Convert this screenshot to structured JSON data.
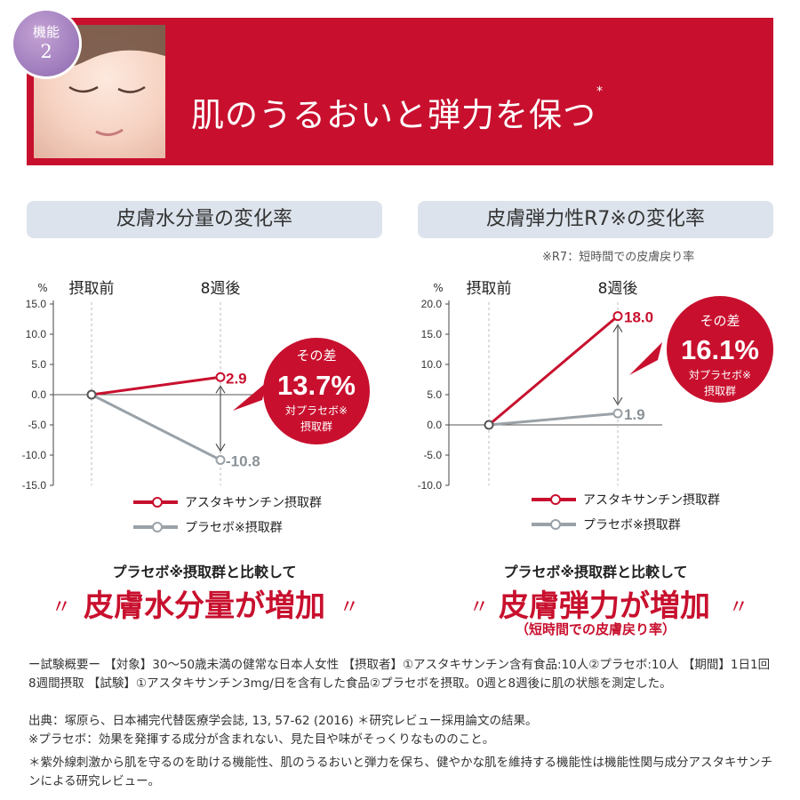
{
  "header": {
    "badge_line1": "機能",
    "badge_line2": "2",
    "title": "肌のうるおいと弾力を保つ",
    "title_mark": "*"
  },
  "left_panel": {
    "title": "皮膚水分量の変化率",
    "diff_label": "その差",
    "diff_value": "13.7%",
    "diff_note1": "対プラセボ※",
    "diff_note2": "摂取群",
    "compare_sub": "プラセボ※摂取群と比較して",
    "compare_big": "皮膚水分量が増加"
  },
  "right_panel": {
    "title": "皮膚弾力性R7※の変化率",
    "note": "※R7：短時間での皮膚戻り率",
    "diff_label": "その差",
    "diff_value": "16.1%",
    "diff_note1": "対プラセボ※",
    "diff_note2": "摂取群",
    "compare_sub": "プラセボ※摂取群と比較して",
    "compare_big": "皮膚弾力が増加",
    "compare_note": "（短時間での皮膚戻り率）"
  },
  "chart_data": [
    {
      "type": "line",
      "title": "皮膚水分量の変化率",
      "unit_label": "%",
      "categories": [
        "摂取前",
        "8週後"
      ],
      "ylim": [
        -15,
        15
      ],
      "yticks": [
        "15.0",
        "10.0",
        "5.0",
        "0.0",
        "-5.0",
        "-10.0",
        "-15.0"
      ],
      "series": [
        {
          "name": "アスタキサンチン摂取群",
          "values": [
            0,
            2.9
          ],
          "end_label": "2.9",
          "color": "#c8102e"
        },
        {
          "name": "プラセボ※摂取群",
          "values": [
            0,
            -10.8
          ],
          "end_label": "-10.8",
          "color": "#9aa2a8"
        }
      ],
      "grid": false,
      "legend_position": "bottom"
    },
    {
      "type": "line",
      "title": "皮膚弾力性R7※の変化率",
      "unit_label": "%",
      "categories": [
        "摂取前",
        "8週後"
      ],
      "ylim": [
        -10,
        20
      ],
      "yticks": [
        "20.0",
        "15.0",
        "10.0",
        "5.0",
        "0.0",
        "-5.0",
        "-10.0"
      ],
      "series": [
        {
          "name": "アスタキサンチン摂取群",
          "values": [
            0,
            18.0
          ],
          "end_label": "18.0",
          "color": "#c8102e"
        },
        {
          "name": "プラセボ※摂取群",
          "values": [
            0,
            1.9
          ],
          "end_label": "1.9",
          "color": "#9aa2a8"
        }
      ],
      "grid": false,
      "legend_position": "bottom"
    }
  ],
  "footnotes": [
    "ー試験概要ー 【対象】30～50歳未満の健常な日本人女性 【摂取者】①アスタキサンチン含有食品:10人②プラセボ:10人 【期間】1日1回 8週間摂取 【試験】①アスタキサンチン3mg/日を含有した食品②プラセボを摂取。0週と8週後に肌の状態を測定した。",
    "出典：塚原ら、日本補完代替医療学会誌, 13, 57-62 (2016) ＊研究レビュー採用論文の結果。",
    "※プラセボ：効果を発揮する成分が含まれない、見た目や味がそっくりなもののこと。",
    "＊紫外線刺激から肌を守るのを助ける機能性、肌のうるおいと弾力を保ち、健やかな肌を維持する機能性は機能性関与成分アスタキサンチンによる研究レビュー。"
  ],
  "colors": {
    "brand_red": "#c8102e",
    "placebo_gray": "#9aa2a8",
    "panel_bg": "#dce3ec",
    "badge_purple": "#8d69b1"
  }
}
